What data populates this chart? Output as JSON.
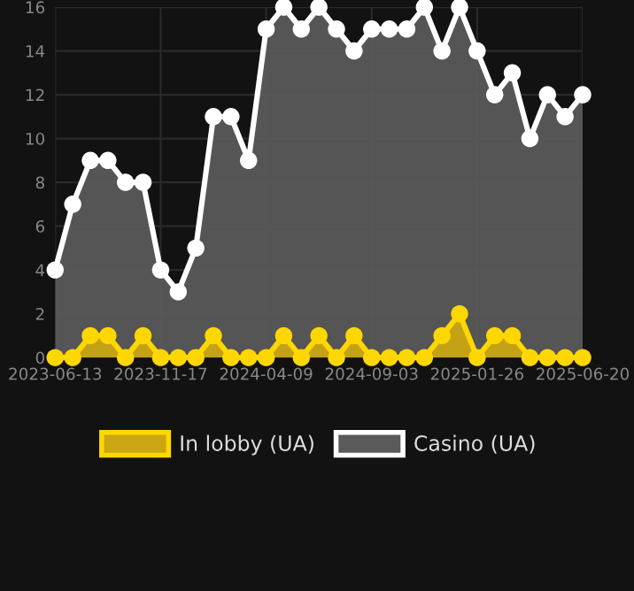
{
  "chart_data": {
    "type": "area",
    "categories": [
      "2023-06-13",
      null,
      null,
      null,
      null,
      null,
      "2023-11-17",
      null,
      null,
      null,
      null,
      null,
      "2024-04-09",
      null,
      null,
      null,
      null,
      null,
      "2024-09-03",
      null,
      null,
      null,
      null,
      null,
      "2025-01-26",
      null,
      null,
      null,
      null,
      null,
      "2025-06-20"
    ],
    "series": [
      {
        "name": "In lobby (UA)",
        "color": "#ffd700",
        "values": [
          0,
          0,
          1,
          1,
          0,
          1,
          0,
          0,
          0,
          1,
          0,
          0,
          0,
          1,
          0,
          1,
          0,
          1,
          0,
          0,
          0,
          0,
          1,
          2,
          0,
          1,
          1,
          0,
          0,
          0,
          0
        ]
      },
      {
        "name": "Casino (UA)",
        "color": "#ffffff",
        "values": [
          4,
          7,
          9,
          9,
          8,
          8,
          4,
          3,
          5,
          11,
          11,
          9,
          15,
          16,
          15,
          16,
          15,
          14,
          15,
          15,
          15,
          16,
          14,
          16,
          14,
          12,
          13,
          10,
          12,
          11,
          12
        ]
      }
    ],
    "ylim": [
      0,
      16
    ],
    "yticks": [
      0,
      2,
      4,
      6,
      8,
      10,
      12,
      14,
      16
    ],
    "grid": true,
    "legend": "bottom",
    "marker": "circle",
    "line_style": "solid"
  }
}
